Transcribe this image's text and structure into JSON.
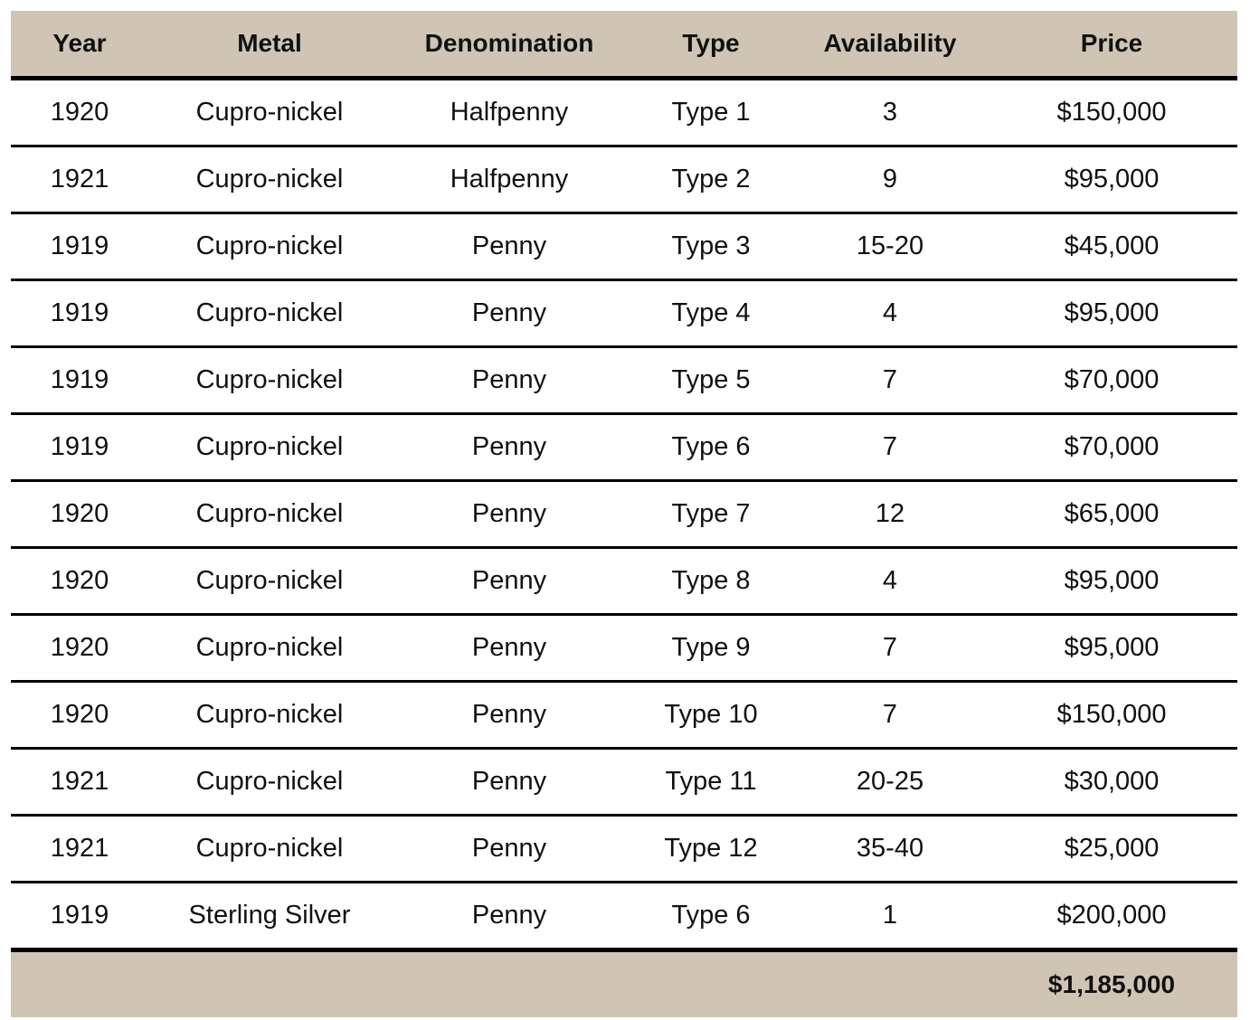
{
  "table": {
    "headers": [
      "Year",
      "Metal",
      "Denomination",
      "Type",
      "Availability",
      "Price"
    ],
    "rows": [
      [
        "1920",
        "Cupro-nickel",
        "Halfpenny",
        "Type 1",
        "3",
        "$150,000"
      ],
      [
        "1921",
        "Cupro-nickel",
        "Halfpenny",
        "Type 2",
        "9",
        "$95,000"
      ],
      [
        "1919",
        "Cupro-nickel",
        "Penny",
        "Type 3",
        "15-20",
        "$45,000"
      ],
      [
        "1919",
        "Cupro-nickel",
        "Penny",
        "Type 4",
        "4",
        "$95,000"
      ],
      [
        "1919",
        "Cupro-nickel",
        "Penny",
        "Type 5",
        "7",
        "$70,000"
      ],
      [
        "1919",
        "Cupro-nickel",
        "Penny",
        "Type 6",
        "7",
        "$70,000"
      ],
      [
        "1920",
        "Cupro-nickel",
        "Penny",
        "Type 7",
        "12",
        "$65,000"
      ],
      [
        "1920",
        "Cupro-nickel",
        "Penny",
        "Type 8",
        "4",
        "$95,000"
      ],
      [
        "1920",
        "Cupro-nickel",
        "Penny",
        "Type 9",
        "7",
        "$95,000"
      ],
      [
        "1920",
        "Cupro-nickel",
        "Penny",
        "Type 10",
        "7",
        "$150,000"
      ],
      [
        "1921",
        "Cupro-nickel",
        "Penny",
        "Type 11",
        "20-25",
        "$30,000"
      ],
      [
        "1921",
        "Cupro-nickel",
        "Penny",
        "Type 12",
        "35-40",
        "$25,000"
      ],
      [
        "1919",
        "Sterling Silver",
        "Penny",
        "Type 6",
        "1",
        "$200,000"
      ]
    ],
    "total": "$1,185,000"
  },
  "colors": {
    "header_background": "#d0c5b5",
    "rule": "#000000"
  }
}
